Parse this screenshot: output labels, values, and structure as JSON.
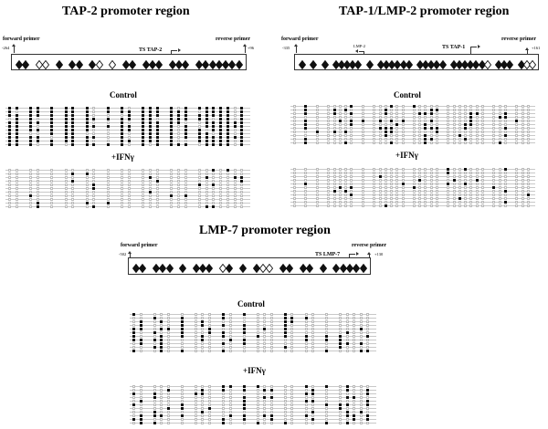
{
  "figure": {
    "panels": [
      {
        "id": "tap2",
        "title": "TAP-2 promoter region",
        "forward_primer_label": "forward primer",
        "forward_position": "-264",
        "reverse_primer_label": "reverse primer",
        "reverse_position": "+96",
        "tss_label": "TS TAP-2",
        "cpg_sites": "MM_UU_M_MM_MU_U_MM_MMM_MMM_MMMMMMM",
        "conditions": [
          {
            "label": "Control",
            "clones": 11
          },
          {
            "label": "+IFNγ",
            "clones": 11
          }
        ]
      },
      {
        "id": "tap1lmp2",
        "title": "TAP-1/LMP-2 promoter region",
        "forward_primer_label": "forward primer",
        "forward_position": "-335",
        "reverse_primer_label": "reverse primer",
        "reverse_position": "+161",
        "tss_label": "TS TAP-1",
        "secondary_tss_label": "LMP-2",
        "cpg_sites": "M_M_M_MMMMM_M_MMMMMM_MMMMM_MMMMMMU_MMM_MUU",
        "conditions": [
          {
            "label": "Control",
            "clones": 11
          },
          {
            "label": "+IFNγ",
            "clones": 11
          }
        ]
      },
      {
        "id": "lmp7",
        "title": "LMP-7 promoter region",
        "forward_primer_label": "forward primer",
        "forward_position": "-502",
        "reverse_primer_label": "reverse primer",
        "reverse_position": "+130",
        "tss_label": "TS LMP-7",
        "cpg_sites": "MM_MMM_M_MMM_UM_M_MUU_MM_MM_M_MMMMM",
        "conditions": [
          {
            "label": "Control",
            "clones": 11
          },
          {
            "label": "+IFNγ",
            "clones": 11
          }
        ]
      }
    ],
    "legend": {
      "filled_diamond": "CpG site",
      "open_diamond": "CpG site (open symbol)",
      "filled_circle": "methylated CpG",
      "open_circle": "unmethylated CpG"
    }
  }
}
